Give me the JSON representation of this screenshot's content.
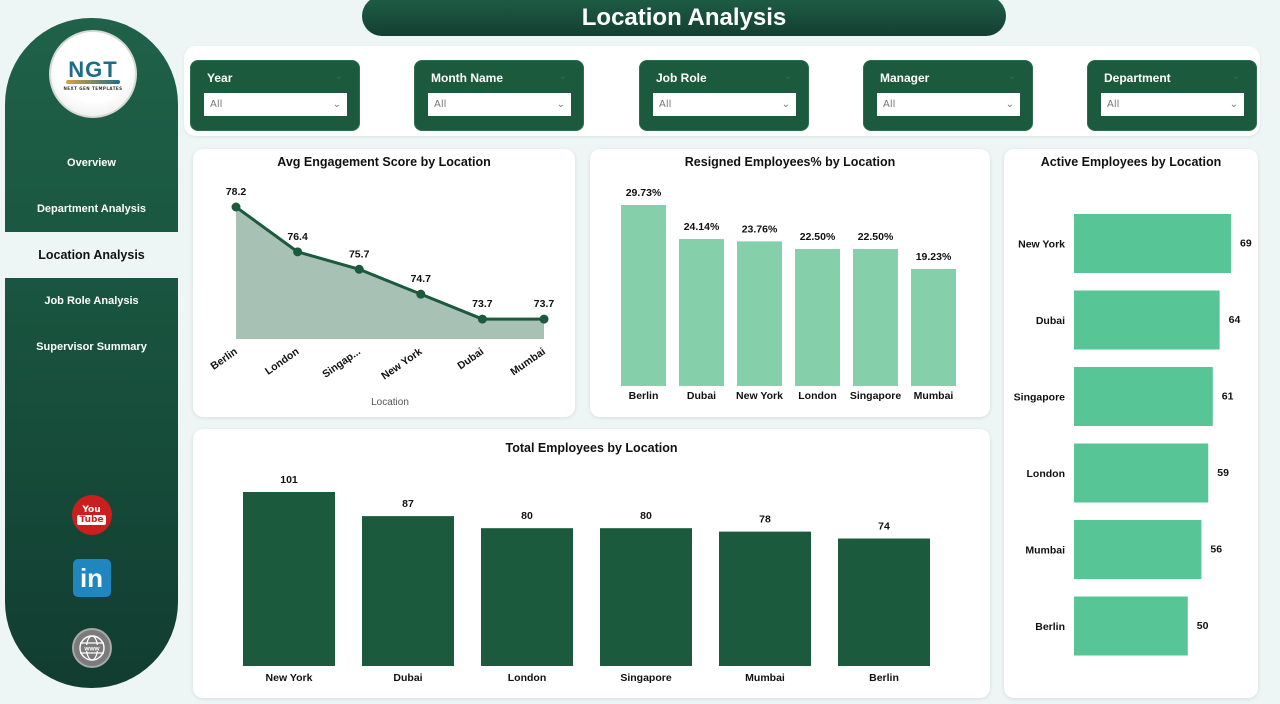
{
  "page": {
    "title": "Location Analysis"
  },
  "sidebar": {
    "logo": {
      "main": "NGT",
      "sub": "NEXT GEN TEMPLATES"
    },
    "items": [
      {
        "label": "Overview",
        "active": false
      },
      {
        "label": "Department Analysis",
        "active": false
      },
      {
        "label": "Location Analysis",
        "active": true
      },
      {
        "label": "Job Role Analysis",
        "active": false
      },
      {
        "label": "Supervisor Summary",
        "active": false
      }
    ],
    "social": {
      "youtube_top": "You",
      "youtube_bottom": "Tube",
      "linkedin": "in",
      "web": "www"
    }
  },
  "filters": [
    {
      "label": "Year",
      "value": "All"
    },
    {
      "label": "Month Name",
      "value": "All"
    },
    {
      "label": "Job Role",
      "value": "All"
    },
    {
      "label": "Manager",
      "value": "All"
    },
    {
      "label": "Department",
      "value": "All"
    }
  ],
  "colors": {
    "dark_green": "#1b5a3c",
    "area_fill": "#a7c2b4",
    "line": "#1b5a3c",
    "resigned_bar": "#86cfab",
    "active_bar": "#58c596",
    "total_bar": "#1b5a3c"
  },
  "chart_data": [
    {
      "type": "area",
      "title": "Avg Engagement Score by Location",
      "xlabel": "Location",
      "ylabel": "",
      "categories": [
        "Berlin",
        "London",
        "Singap...",
        "New York",
        "Dubai",
        "Mumbai"
      ],
      "values": [
        78.2,
        76.4,
        75.7,
        74.7,
        73.7,
        73.7
      ],
      "labels": [
        "78.2",
        "76.4",
        "75.7",
        "74.7",
        "73.7",
        "73.7"
      ],
      "grid": false
    },
    {
      "type": "bar",
      "title": "Resigned Employees% by Location",
      "categories": [
        "Berlin",
        "Dubai",
        "New York",
        "London",
        "Singapore",
        "Mumbai"
      ],
      "values": [
        29.73,
        24.14,
        23.76,
        22.5,
        22.5,
        19.23
      ],
      "labels": [
        "29.73%",
        "24.14%",
        "23.76%",
        "22.50%",
        "22.50%",
        "19.23%"
      ],
      "grid": false
    },
    {
      "type": "bar",
      "orientation": "horizontal",
      "title": "Active Employees by Location",
      "categories": [
        "New York",
        "Dubai",
        "Singapore",
        "London",
        "Mumbai",
        "Berlin"
      ],
      "values": [
        69,
        64,
        61,
        59,
        56,
        50
      ],
      "labels": [
        "69",
        "64",
        "61",
        "59",
        "56",
        "50"
      ],
      "grid": false
    },
    {
      "type": "bar",
      "title": "Total Employees by Location",
      "categories": [
        "New York",
        "Dubai",
        "London",
        "Singapore",
        "Mumbai",
        "Berlin"
      ],
      "values": [
        101,
        87,
        80,
        80,
        78,
        74
      ],
      "labels": [
        "101",
        "87",
        "80",
        "80",
        "78",
        "74"
      ],
      "grid": false
    }
  ]
}
